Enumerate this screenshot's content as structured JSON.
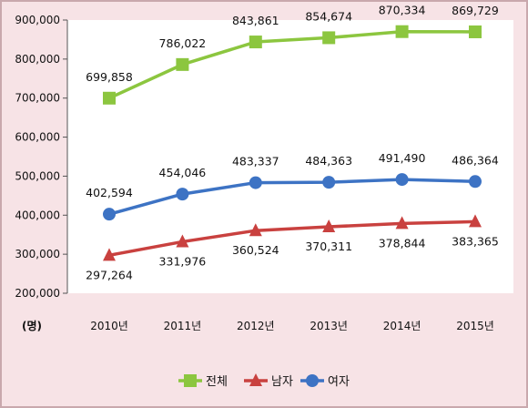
{
  "chart_data": {
    "type": "line",
    "unit_label": "(명)",
    "categories": [
      "2010년",
      "2011년",
      "2012년",
      "2013년",
      "2014년",
      "2015년"
    ],
    "ylim": [
      200000,
      900000
    ],
    "yticks": [
      "200,000",
      "300,000",
      "400,000",
      "500,000",
      "600,000",
      "700,000",
      "800,000",
      "900,000"
    ],
    "grid": false,
    "legend_position": "bottom",
    "series": [
      {
        "name": "전체",
        "marker": "square",
        "color": "#8cc63f",
        "label_position": "above",
        "values": [
          699858,
          786022,
          843861,
          854674,
          870334,
          869729
        ],
        "labels": [
          "699,858",
          "786,022",
          "843,861",
          "854,674",
          "870,334",
          "869,729"
        ]
      },
      {
        "name": "남자",
        "marker": "triangle",
        "color": "#c9413f",
        "label_position": "below",
        "values": [
          297264,
          331976,
          360524,
          370311,
          378844,
          383365
        ],
        "labels": [
          "297,264",
          "331,976",
          "360,524",
          "370,311",
          "378,844",
          "383,365"
        ]
      },
      {
        "name": "여자",
        "marker": "circle",
        "color": "#3d73c4",
        "label_position": "above",
        "values": [
          402594,
          454046,
          483337,
          484363,
          491490,
          486364
        ],
        "labels": [
          "402,594",
          "454,046",
          "483,337",
          "484,363",
          "491,490",
          "486,364"
        ]
      }
    ]
  }
}
